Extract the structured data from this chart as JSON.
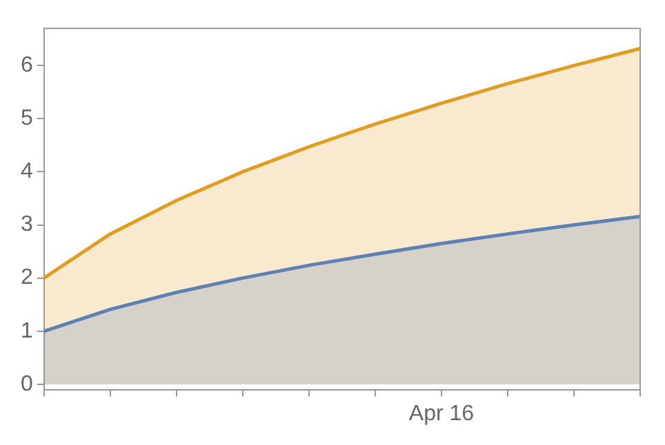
{
  "chart_data": {
    "type": "area",
    "categories": [
      null,
      null,
      null,
      null,
      null,
      null,
      "Apr 16",
      null,
      null,
      null
    ],
    "series": [
      {
        "color": "#5e81b5",
        "values": [
          1,
          1.41,
          1.73,
          2,
          2.24,
          2.45,
          2.65,
          2.83,
          3,
          3.16
        ]
      },
      {
        "color": "#e19c24",
        "values": [
          2,
          2.83,
          3.46,
          4,
          4.47,
          4.9,
          5.29,
          5.66,
          6,
          6.32
        ]
      }
    ],
    "ylim": [
      -0.1,
      6.7
    ],
    "yticks": [
      0,
      1,
      2,
      3,
      4,
      5,
      6
    ],
    "grid": false,
    "legend": false
  }
}
